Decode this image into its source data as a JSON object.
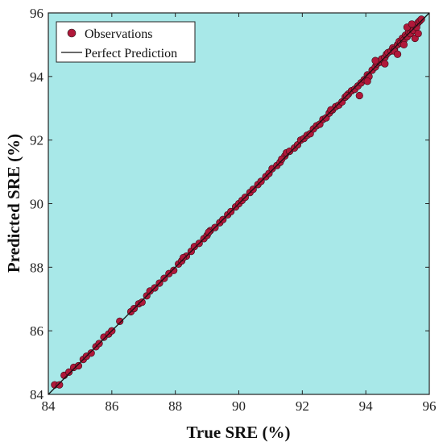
{
  "chart_data": {
    "type": "scatter",
    "title": "",
    "xlabel": "True SRE (%)",
    "ylabel": "Predicted SRE (%)",
    "xlim": [
      84,
      96
    ],
    "ylim": [
      84,
      96
    ],
    "xticks": [
      "84",
      "86",
      "88",
      "90",
      "92",
      "94",
      "96"
    ],
    "yticks": [
      "84",
      "86",
      "88",
      "90",
      "92",
      "94",
      "96"
    ],
    "grid": false,
    "legend_position": "top-left",
    "background_color": "#a8e8e8",
    "marker_color": "#b0183a",
    "series": [
      {
        "name": "Observations",
        "kind": "scatter",
        "points": [
          [
            84.2,
            84.3
          ],
          [
            84.35,
            84.3
          ],
          [
            84.5,
            84.6
          ],
          [
            84.65,
            84.7
          ],
          [
            84.8,
            84.85
          ],
          [
            84.95,
            84.9
          ],
          [
            85.1,
            85.1
          ],
          [
            85.2,
            85.2
          ],
          [
            85.35,
            85.3
          ],
          [
            85.5,
            85.5
          ],
          [
            85.6,
            85.6
          ],
          [
            85.75,
            85.8
          ],
          [
            85.9,
            85.9
          ],
          [
            86.0,
            86.0
          ],
          [
            86.25,
            86.3
          ],
          [
            86.6,
            86.6
          ],
          [
            86.7,
            86.7
          ],
          [
            86.85,
            86.85
          ],
          [
            86.95,
            86.9
          ],
          [
            87.1,
            87.1
          ],
          [
            87.2,
            87.25
          ],
          [
            87.35,
            87.35
          ],
          [
            87.5,
            87.5
          ],
          [
            87.65,
            87.65
          ],
          [
            87.8,
            87.8
          ],
          [
            87.95,
            87.9
          ],
          [
            88.1,
            88.1
          ],
          [
            88.2,
            88.2
          ],
          [
            88.35,
            88.35
          ],
          [
            88.5,
            88.5
          ],
          [
            88.6,
            88.65
          ],
          [
            88.75,
            88.75
          ],
          [
            88.9,
            88.9
          ],
          [
            89.0,
            89.0
          ],
          [
            89.1,
            89.15
          ],
          [
            89.25,
            89.25
          ],
          [
            89.4,
            89.4
          ],
          [
            89.5,
            89.5
          ],
          [
            89.65,
            89.65
          ],
          [
            89.75,
            89.75
          ],
          [
            89.9,
            89.9
          ],
          [
            90.0,
            90.0
          ],
          [
            90.1,
            90.1
          ],
          [
            90.2,
            90.2
          ],
          [
            90.35,
            90.35
          ],
          [
            90.45,
            90.45
          ],
          [
            90.6,
            90.6
          ],
          [
            90.7,
            90.7
          ],
          [
            90.85,
            90.85
          ],
          [
            90.95,
            90.95
          ],
          [
            91.05,
            91.1
          ],
          [
            91.2,
            91.2
          ],
          [
            91.3,
            91.3
          ],
          [
            91.45,
            91.5
          ],
          [
            91.5,
            91.6
          ],
          [
            91.6,
            91.65
          ],
          [
            91.75,
            91.75
          ],
          [
            91.85,
            91.85
          ],
          [
            91.95,
            92.0
          ],
          [
            92.05,
            92.05
          ],
          [
            92.15,
            92.15
          ],
          [
            92.25,
            92.2
          ],
          [
            92.35,
            92.35
          ],
          [
            92.45,
            92.45
          ],
          [
            92.55,
            92.5
          ],
          [
            92.65,
            92.65
          ],
          [
            92.75,
            92.7
          ],
          [
            92.85,
            92.85
          ],
          [
            92.95,
            92.95
          ],
          [
            93.05,
            93.05
          ],
          [
            93.15,
            93.1
          ],
          [
            93.25,
            93.2
          ],
          [
            93.35,
            93.35
          ],
          [
            93.45,
            93.45
          ],
          [
            93.55,
            93.55
          ],
          [
            93.65,
            93.6
          ],
          [
            93.75,
            93.7
          ],
          [
            93.85,
            93.8
          ],
          [
            93.95,
            93.9
          ],
          [
            94.05,
            94.05
          ],
          [
            94.1,
            94.0
          ],
          [
            94.2,
            94.2
          ],
          [
            94.3,
            94.3
          ],
          [
            94.35,
            94.4
          ],
          [
            94.45,
            94.45
          ],
          [
            94.5,
            94.55
          ],
          [
            94.6,
            94.6
          ],
          [
            94.65,
            94.7
          ],
          [
            94.7,
            94.75
          ],
          [
            94.8,
            94.8
          ],
          [
            94.85,
            94.9
          ],
          [
            94.9,
            94.85
          ],
          [
            95.0,
            95.0
          ],
          [
            95.05,
            95.1
          ],
          [
            95.1,
            95.05
          ],
          [
            95.15,
            95.2
          ],
          [
            95.2,
            95.15
          ],
          [
            95.25,
            95.3
          ],
          [
            95.3,
            95.25
          ],
          [
            95.35,
            95.4
          ],
          [
            95.4,
            95.35
          ],
          [
            95.45,
            95.5
          ],
          [
            95.5,
            95.45
          ],
          [
            95.55,
            95.6
          ],
          [
            95.6,
            95.55
          ],
          [
            95.65,
            95.7
          ],
          [
            95.7,
            95.75
          ],
          [
            95.75,
            95.8
          ],
          [
            93.4,
            93.4
          ],
          [
            93.8,
            93.4
          ],
          [
            94.6,
            94.4
          ],
          [
            94.9,
            94.8
          ],
          [
            95.0,
            94.7
          ],
          [
            95.2,
            95.0
          ],
          [
            95.55,
            95.2
          ],
          [
            95.65,
            95.35
          ],
          [
            95.3,
            95.55
          ],
          [
            95.45,
            95.65
          ],
          [
            94.3,
            94.5
          ],
          [
            94.05,
            93.85
          ],
          [
            92.9,
            92.95
          ],
          [
            91.35,
            91.4
          ],
          [
            89.05,
            89.1
          ],
          [
            88.25,
            88.3
          ]
        ]
      },
      {
        "name": "Perfect Prediction",
        "kind": "line",
        "points": [
          [
            84,
            84
          ],
          [
            96,
            96
          ]
        ]
      }
    ]
  }
}
